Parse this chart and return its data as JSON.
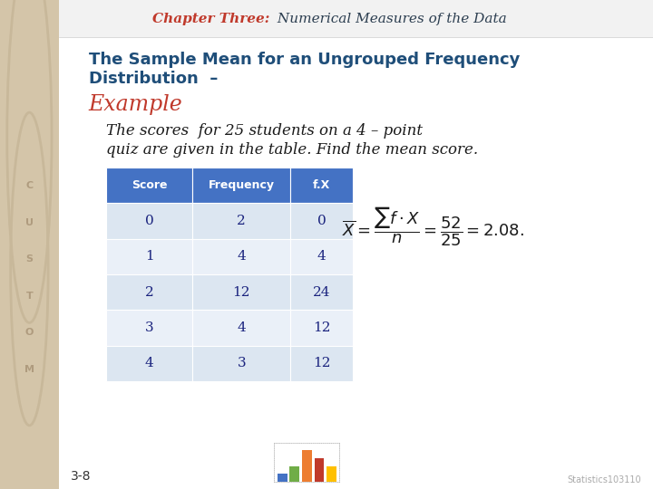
{
  "white_bg": "#ffffff",
  "header_title_red": "#c0392b",
  "header_title_black": "#2c3e50",
  "slide_title_blue": "#1f4e79",
  "example_color": "#c0392b",
  "table_header_bg": "#4472c4",
  "table_row_bg1": "#dce6f1",
  "table_row_bg2": "#eaf0f8",
  "table_text": "#1a237e",
  "left_strip_color": "#d4c5a9",
  "chapter_header": "Chapter Three:",
  "chapter_rest": " Numerical Measures of the Data",
  "slide_title_line1": "The Sample Mean for an Ungrouped Frequency",
  "slide_title_line2": "Distribution  –",
  "example_label": "Example",
  "description_line1": "The scores  for 25 students on a 4 – point",
  "description_line2": "quiz are given in the table. Find the mean score.",
  "table_headers": [
    "Score",
    "Frequency",
    "f.X"
  ],
  "table_data": [
    [
      0,
      2,
      0
    ],
    [
      1,
      4,
      4
    ],
    [
      2,
      12,
      24
    ],
    [
      3,
      4,
      12
    ],
    [
      4,
      3,
      12
    ]
  ],
  "page_number": "3-8",
  "watermark": "Statistics103110",
  "left_letters": "C\nU\nS\nT\nO\nM"
}
